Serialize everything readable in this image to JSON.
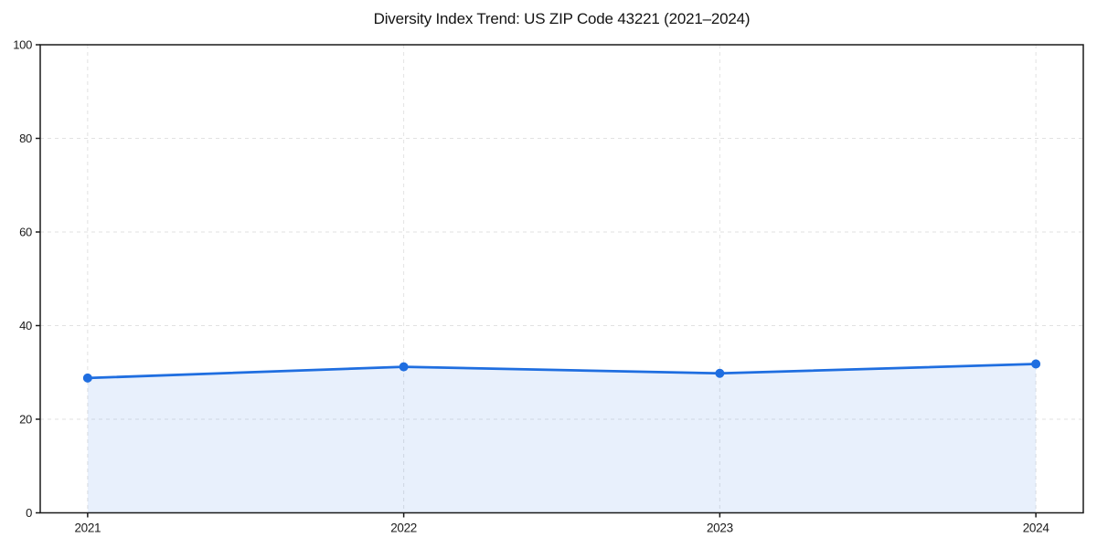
{
  "figure": {
    "title": "Diversity Index Trend: US ZIP Code 43221 (2021–2024)"
  },
  "chart_data": {
    "type": "area",
    "title": "Diversity Index Trend: US ZIP Code 43221 (2021–2024)",
    "xlabel": "",
    "ylabel": "",
    "x": [
      2021,
      2022,
      2023,
      2024
    ],
    "x_tick_labels": [
      "2021",
      "2022",
      "2023",
      "2024"
    ],
    "series": [
      {
        "name": "Diversity Index",
        "values": [
          28.8,
          31.2,
          29.8,
          31.8
        ]
      }
    ],
    "ylim": [
      0,
      100
    ],
    "y_ticks": [
      0,
      20,
      40,
      60,
      80,
      100
    ],
    "x_margin_frac": 0.05,
    "grid": "dashed",
    "legend_position": "none",
    "colors": {
      "line": "#1f6ee0",
      "marker": "#1f6ee0",
      "fill": "#1f6ee0",
      "fill_opacity": 0.1,
      "grid": "#e2e2e2",
      "spine": "#1a1a1a",
      "tick_label": "#1a1a1a",
      "title": "#141414",
      "background": "#ffffff"
    }
  }
}
